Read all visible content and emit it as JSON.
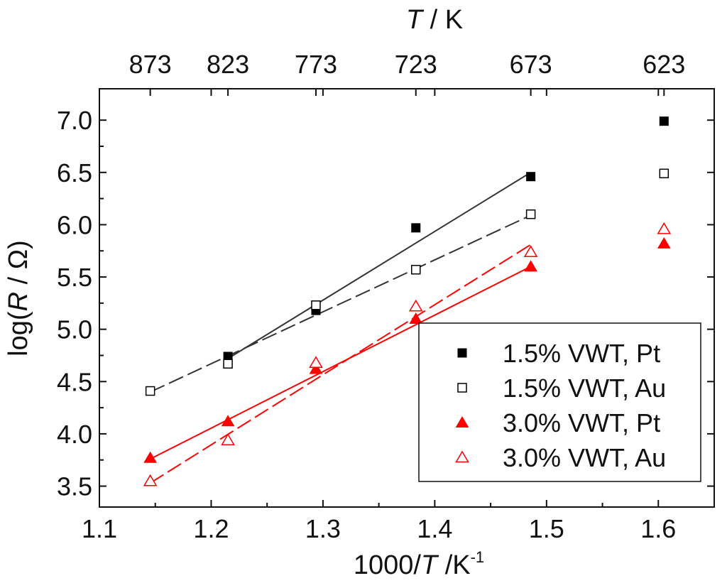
{
  "chart_data": {
    "type": "scatter",
    "title": "",
    "xlabel": {
      "prefix": "1000/",
      "italic": "T",
      "suffix": " /K",
      "sup": "-1"
    },
    "ylabel": {
      "prefix": "log(",
      "italic": "R",
      "suffix": " / Ω)"
    },
    "top_xlabel": {
      "italic": "T",
      "suffix": " / K"
    },
    "xlim": [
      1.1,
      1.65
    ],
    "ylim": [
      3.3,
      7.3
    ],
    "xticks": [
      "1.1",
      "1.2",
      "1.3",
      "1.4",
      "1.5",
      "1.6"
    ],
    "xtick_values": [
      1.1,
      1.2,
      1.3,
      1.4,
      1.5,
      1.6
    ],
    "yticks": [
      "3.5",
      "4.0",
      "4.5",
      "5.0",
      "5.5",
      "6.0",
      "6.5",
      "7.0"
    ],
    "ytick_values": [
      3.5,
      4.0,
      4.5,
      5.0,
      5.5,
      6.0,
      6.5,
      7.0
    ],
    "top_ticks": [
      {
        "label": "873",
        "x": 1.1455
      },
      {
        "label": "823",
        "x": 1.215
      },
      {
        "label": "773",
        "x": 1.2937
      },
      {
        "label": "723",
        "x": 1.3831
      },
      {
        "label": "673",
        "x": 1.4859
      },
      {
        "label": "623",
        "x": 1.6051
      }
    ],
    "legend_position": "lower-right",
    "series": [
      {
        "name": "1.5% VWT, Pt",
        "marker": "square-filled",
        "color": "#000000",
        "x": [
          1.215,
          1.2937,
          1.3831,
          1.4859,
          1.6051
        ],
        "y": [
          4.74,
          5.18,
          5.97,
          6.46,
          6.99
        ],
        "fit": {
          "x": [
            1.215,
            1.4859
          ],
          "y": [
            4.72,
            6.5
          ],
          "dash": "solid"
        }
      },
      {
        "name": "1.5% VWT, Au",
        "marker": "square-open",
        "color": "#000000",
        "x": [
          1.1455,
          1.215,
          1.2937,
          1.3831,
          1.4859,
          1.6051
        ],
        "y": [
          4.41,
          4.67,
          5.23,
          5.57,
          6.1,
          6.49
        ],
        "fit": {
          "x": [
            1.1455,
            1.4859
          ],
          "y": [
            4.4,
            6.09
          ],
          "dash": "long-dash"
        }
      },
      {
        "name": "3.0% VWT, Pt",
        "marker": "triangle-filled",
        "color": "#ff0000",
        "x": [
          1.1455,
          1.215,
          1.2937,
          1.3831,
          1.4859,
          1.6051
        ],
        "y": [
          3.77,
          4.12,
          4.62,
          5.1,
          5.6,
          5.82
        ],
        "fit": {
          "x": [
            1.1455,
            1.4859
          ],
          "y": [
            3.76,
            5.6
          ],
          "dash": "solid"
        }
      },
      {
        "name": "3.0% VWT, Au",
        "marker": "triangle-open",
        "color": "#ff0000",
        "x": [
          1.1455,
          1.215,
          1.2937,
          1.3831,
          1.4859,
          1.6051
        ],
        "y": [
          3.55,
          3.94,
          4.68,
          5.22,
          5.74,
          5.96
        ],
        "fit": {
          "x": [
            1.1455,
            1.4859
          ],
          "y": [
            3.53,
            5.81
          ],
          "dash": "long-dash"
        }
      }
    ]
  }
}
